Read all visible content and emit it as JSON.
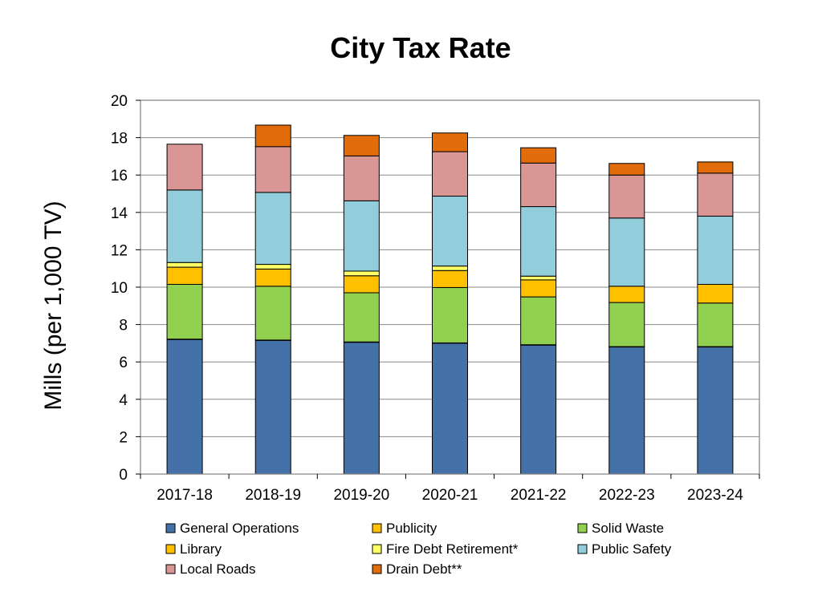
{
  "chart_data": {
    "type": "bar",
    "stacked": true,
    "title": "City Tax Rate",
    "ylabel": "Mills (per 1,000 TV)",
    "xlabel": "",
    "ylim": [
      0,
      20
    ],
    "yticks": [
      0,
      2,
      4,
      6,
      8,
      10,
      12,
      14,
      16,
      18,
      20
    ],
    "grid": true,
    "legend_position": "bottom",
    "categories": [
      "2017-18",
      "2018-19",
      "2019-20",
      "2020-21",
      "2021-22",
      "2022-23",
      "2023-24"
    ],
    "series": [
      {
        "name": "General Operations",
        "color": "#4472A8",
        "values": [
          7.2,
          7.15,
          7.05,
          7.0,
          6.9,
          6.8,
          6.8
        ]
      },
      {
        "name": "Publicity",
        "color": "#FFC000",
        "values": [
          0.02,
          0.02,
          0.02,
          0.02,
          0.02,
          0.02,
          0.02
        ]
      },
      {
        "name": "Solid Waste",
        "color": "#92D050",
        "values": [
          2.93,
          2.88,
          2.63,
          2.96,
          2.56,
          2.36,
          2.33
        ]
      },
      {
        "name": "Library",
        "color": "#FFC000",
        "values": [
          0.92,
          0.92,
          0.91,
          0.91,
          0.91,
          0.87,
          1.0
        ]
      },
      {
        "name": "Fire Debt Retirement*",
        "color": "#FFFF66",
        "values": [
          0.25,
          0.25,
          0.25,
          0.24,
          0.2,
          0.0,
          0.0
        ]
      },
      {
        "name": "Public Safety",
        "color": "#92CDDC",
        "values": [
          3.88,
          3.85,
          3.76,
          3.74,
          3.72,
          3.65,
          3.65
        ]
      },
      {
        "name": "Local Roads",
        "color": "#DA9694",
        "values": [
          2.45,
          2.45,
          2.4,
          2.38,
          2.33,
          2.3,
          2.3
        ]
      },
      {
        "name": "Drain Debt**",
        "color": "#E26B0A",
        "values": [
          0.0,
          1.15,
          1.1,
          1.0,
          0.82,
          0.62,
          0.6
        ]
      }
    ]
  }
}
